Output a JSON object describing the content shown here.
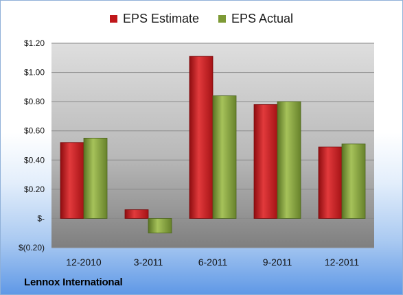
{
  "chart_data": {
    "type": "bar",
    "categories": [
      "12-2010",
      "3-2011",
      "6-2011",
      "9-2011",
      "12-2011"
    ],
    "series": [
      {
        "name": "EPS Estimate",
        "values": [
          0.52,
          0.06,
          1.11,
          0.78,
          0.49
        ],
        "color": "#c0171b"
      },
      {
        "name": "EPS Actual",
        "values": [
          0.55,
          -0.1,
          0.84,
          0.8,
          0.51
        ],
        "color": "#7d9a35"
      }
    ],
    "y_ticks": [
      {
        "value": 1.2,
        "label": "$1.20"
      },
      {
        "value": 1.0,
        "label": "$1.00"
      },
      {
        "value": 0.8,
        "label": "$0.80"
      },
      {
        "value": 0.6,
        "label": "$0.60"
      },
      {
        "value": 0.4,
        "label": "$0.40"
      },
      {
        "value": 0.2,
        "label": "$0.20"
      },
      {
        "value": 0.0,
        "label": "$-"
      },
      {
        "value": -0.2,
        "label": "$(0.20)"
      }
    ],
    "ylim": [
      -0.2,
      1.2
    ],
    "grid": true,
    "legend": "top-center"
  },
  "company": "Lennox International"
}
